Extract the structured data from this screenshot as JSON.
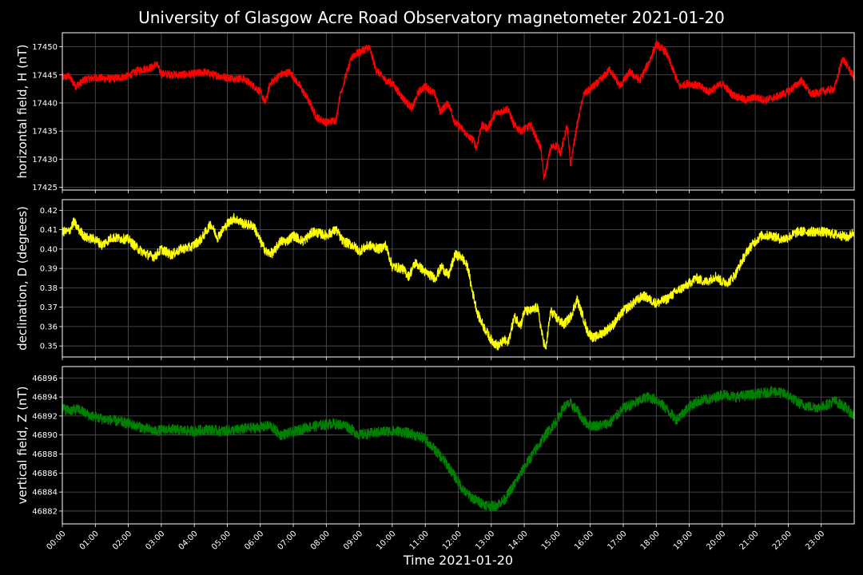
{
  "chart_data": {
    "type": "line",
    "title": "University of Glasgow Acre Road Observatory magnetometer 2021-01-20",
    "xlabel": "Time 2021-01-20",
    "x_tick_labels": [
      "00:00",
      "01:00",
      "02:00",
      "03:00",
      "04:00",
      "05:00",
      "06:00",
      "07:00",
      "08:00",
      "09:00",
      "10:00",
      "11:00",
      "12:00",
      "13:00",
      "14:00",
      "15:00",
      "16:00",
      "17:00",
      "18:00",
      "19:00",
      "20:00",
      "21:00",
      "22:00",
      "23:00"
    ],
    "x_range_hours": [
      0,
      24
    ],
    "grid": true,
    "background": "#000000",
    "grid_color": "#555555",
    "panels": [
      {
        "name": "H",
        "ylabel": "horizontal field, H (nT)",
        "color": "#ff0000",
        "ylim": [
          17424.5,
          17452.5
        ],
        "ytick_values": [
          17425,
          17430,
          17435,
          17440,
          17445,
          17450
        ],
        "ytick_labels": [
          "17425",
          "17430",
          "17435",
          "17440",
          "17445",
          "17450"
        ],
        "noise": 0.7,
        "series": [
          [
            0.0,
            17444.5
          ],
          [
            0.2,
            17444.8
          ],
          [
            0.4,
            17443.0
          ],
          [
            0.7,
            17444.2
          ],
          [
            1.0,
            17444.5
          ],
          [
            1.5,
            17444.3
          ],
          [
            2.0,
            17444.8
          ],
          [
            2.3,
            17445.8
          ],
          [
            2.7,
            17446.3
          ],
          [
            2.85,
            17447.0
          ],
          [
            3.0,
            17445.2
          ],
          [
            3.5,
            17445.0
          ],
          [
            4.0,
            17445.2
          ],
          [
            4.3,
            17445.5
          ],
          [
            4.6,
            17445.0
          ],
          [
            5.0,
            17444.5
          ],
          [
            5.5,
            17444.3
          ],
          [
            5.8,
            17443.0
          ],
          [
            6.0,
            17442.0
          ],
          [
            6.15,
            17440.0
          ],
          [
            6.3,
            17443.5
          ],
          [
            6.6,
            17445.0
          ],
          [
            6.9,
            17445.5
          ],
          [
            7.2,
            17443.0
          ],
          [
            7.5,
            17440.0
          ],
          [
            7.7,
            17437.5
          ],
          [
            8.0,
            17436.5
          ],
          [
            8.3,
            17437.0
          ],
          [
            8.4,
            17441.0
          ],
          [
            8.6,
            17445.0
          ],
          [
            8.8,
            17448.5
          ],
          [
            9.0,
            17449.0
          ],
          [
            9.3,
            17450.0
          ],
          [
            9.5,
            17446.0
          ],
          [
            9.8,
            17444.0
          ],
          [
            10.0,
            17443.5
          ],
          [
            10.3,
            17441.0
          ],
          [
            10.6,
            17439.0
          ],
          [
            10.8,
            17442.0
          ],
          [
            11.0,
            17443.0
          ],
          [
            11.3,
            17441.5
          ],
          [
            11.45,
            17438.5
          ],
          [
            11.7,
            17440.0
          ],
          [
            11.9,
            17436.5
          ],
          [
            12.1,
            17435.5
          ],
          [
            12.3,
            17434.0
          ],
          [
            12.45,
            17433.5
          ],
          [
            12.55,
            17432.0
          ],
          [
            12.7,
            17436.0
          ],
          [
            12.9,
            17435.5
          ],
          [
            13.1,
            17438.0
          ],
          [
            13.3,
            17438.5
          ],
          [
            13.5,
            17439.0
          ],
          [
            13.7,
            17436.0
          ],
          [
            13.9,
            17435.0
          ],
          [
            14.2,
            17436.0
          ],
          [
            14.35,
            17434.0
          ],
          [
            14.5,
            17432.0
          ],
          [
            14.6,
            17426.5
          ],
          [
            14.8,
            17432.0
          ],
          [
            15.0,
            17432.5
          ],
          [
            15.1,
            17431.0
          ],
          [
            15.3,
            17436.0
          ],
          [
            15.4,
            17429.0
          ],
          [
            15.6,
            17436.0
          ],
          [
            15.8,
            17441.5
          ],
          [
            16.0,
            17442.5
          ],
          [
            16.3,
            17444.0
          ],
          [
            16.6,
            17446.0
          ],
          [
            16.9,
            17443.0
          ],
          [
            17.2,
            17445.5
          ],
          [
            17.5,
            17444.0
          ],
          [
            17.8,
            17447.5
          ],
          [
            18.0,
            17450.5
          ],
          [
            18.3,
            17449.0
          ],
          [
            18.5,
            17446.0
          ],
          [
            18.7,
            17443.0
          ],
          [
            19.0,
            17443.5
          ],
          [
            19.3,
            17443.0
          ],
          [
            19.6,
            17442.0
          ],
          [
            20.0,
            17443.5
          ],
          [
            20.3,
            17441.5
          ],
          [
            20.7,
            17440.5
          ],
          [
            21.0,
            17441.0
          ],
          [
            21.3,
            17440.5
          ],
          [
            21.6,
            17441.0
          ],
          [
            22.0,
            17442.0
          ],
          [
            22.4,
            17444.0
          ],
          [
            22.7,
            17441.5
          ],
          [
            23.0,
            17442.0
          ],
          [
            23.4,
            17442.5
          ],
          [
            23.65,
            17448.0
          ],
          [
            23.8,
            17446.5
          ],
          [
            24.0,
            17444.5
          ]
        ]
      },
      {
        "name": "D",
        "ylabel": "declination, D (degrees)",
        "color": "#ffff00",
        "ylim": [
          0.3443,
          0.4255
        ],
        "ytick_values": [
          0.35,
          0.36,
          0.37,
          0.38,
          0.39,
          0.4,
          0.41,
          0.42
        ],
        "ytick_labels": [
          "0.35",
          "0.36",
          "0.37",
          "0.38",
          "0.39",
          "0.40",
          "0.41",
          "0.42"
        ],
        "noise": 0.0025,
        "series": [
          [
            0.0,
            0.409
          ],
          [
            0.2,
            0.409
          ],
          [
            0.35,
            0.414
          ],
          [
            0.5,
            0.41
          ],
          [
            0.7,
            0.406
          ],
          [
            1.0,
            0.405
          ],
          [
            1.2,
            0.402
          ],
          [
            1.5,
            0.406
          ],
          [
            2.0,
            0.405
          ],
          [
            2.3,
            0.4
          ],
          [
            2.6,
            0.397
          ],
          [
            2.8,
            0.396
          ],
          [
            3.0,
            0.4
          ],
          [
            3.3,
            0.397
          ],
          [
            3.6,
            0.4
          ],
          [
            3.9,
            0.401
          ],
          [
            4.2,
            0.405
          ],
          [
            4.5,
            0.413
          ],
          [
            4.7,
            0.406
          ],
          [
            5.0,
            0.413
          ],
          [
            5.2,
            0.416
          ],
          [
            5.5,
            0.413
          ],
          [
            5.8,
            0.412
          ],
          [
            6.0,
            0.404
          ],
          [
            6.2,
            0.398
          ],
          [
            6.4,
            0.398
          ],
          [
            6.6,
            0.404
          ],
          [
            6.8,
            0.404
          ],
          [
            7.0,
            0.407
          ],
          [
            7.3,
            0.404
          ],
          [
            7.6,
            0.409
          ],
          [
            8.0,
            0.407
          ],
          [
            8.3,
            0.41
          ],
          [
            8.5,
            0.404
          ],
          [
            8.8,
            0.402
          ],
          [
            9.0,
            0.399
          ],
          [
            9.3,
            0.402
          ],
          [
            9.6,
            0.4
          ],
          [
            9.8,
            0.402
          ],
          [
            10.0,
            0.391
          ],
          [
            10.3,
            0.39
          ],
          [
            10.5,
            0.386
          ],
          [
            10.7,
            0.393
          ],
          [
            11.0,
            0.388
          ],
          [
            11.3,
            0.385
          ],
          [
            11.5,
            0.391
          ],
          [
            11.7,
            0.386
          ],
          [
            11.9,
            0.397
          ],
          [
            12.1,
            0.396
          ],
          [
            12.3,
            0.39
          ],
          [
            12.4,
            0.38
          ],
          [
            12.5,
            0.373
          ],
          [
            12.6,
            0.366
          ],
          [
            12.8,
            0.359
          ],
          [
            13.0,
            0.353
          ],
          [
            13.2,
            0.35
          ],
          [
            13.4,
            0.353
          ],
          [
            13.5,
            0.351
          ],
          [
            13.7,
            0.365
          ],
          [
            13.9,
            0.361
          ],
          [
            14.0,
            0.368
          ],
          [
            14.2,
            0.368
          ],
          [
            14.4,
            0.37
          ],
          [
            14.55,
            0.355
          ],
          [
            14.65,
            0.348
          ],
          [
            14.8,
            0.368
          ],
          [
            15.0,
            0.364
          ],
          [
            15.2,
            0.361
          ],
          [
            15.4,
            0.365
          ],
          [
            15.6,
            0.374
          ],
          [
            15.8,
            0.364
          ],
          [
            15.9,
            0.358
          ],
          [
            16.1,
            0.354
          ],
          [
            16.4,
            0.357
          ],
          [
            16.7,
            0.361
          ],
          [
            17.0,
            0.368
          ],
          [
            17.3,
            0.372
          ],
          [
            17.6,
            0.376
          ],
          [
            18.0,
            0.372
          ],
          [
            18.3,
            0.374
          ],
          [
            18.6,
            0.378
          ],
          [
            18.9,
            0.381
          ],
          [
            19.2,
            0.385
          ],
          [
            19.5,
            0.383
          ],
          [
            19.8,
            0.386
          ],
          [
            20.0,
            0.383
          ],
          [
            20.2,
            0.383
          ],
          [
            20.4,
            0.387
          ],
          [
            20.6,
            0.394
          ],
          [
            20.8,
            0.4
          ],
          [
            21.0,
            0.404
          ],
          [
            21.2,
            0.407
          ],
          [
            21.5,
            0.407
          ],
          [
            21.8,
            0.405
          ],
          [
            22.0,
            0.406
          ],
          [
            22.3,
            0.409
          ],
          [
            22.6,
            0.409
          ],
          [
            23.0,
            0.409
          ],
          [
            23.3,
            0.408
          ],
          [
            23.6,
            0.407
          ],
          [
            23.8,
            0.406
          ],
          [
            24.0,
            0.409
          ]
        ]
      },
      {
        "name": "Z",
        "ylabel": "vertical field, Z (nT)",
        "color": "#008000",
        "ylim": [
          46880.65,
          46897.2
        ],
        "ytick_values": [
          46882,
          46884,
          46886,
          46888,
          46890,
          46892,
          46894,
          46896
        ],
        "ytick_labels": [
          "46882",
          "46884",
          "46886",
          "46888",
          "46890",
          "46892",
          "46894",
          "46896"
        ],
        "noise": 0.55,
        "series": [
          [
            0.0,
            46892.8
          ],
          [
            0.2,
            46892.6
          ],
          [
            0.5,
            46892.7
          ],
          [
            0.8,
            46892.1
          ],
          [
            1.2,
            46891.7
          ],
          [
            1.6,
            46891.5
          ],
          [
            2.0,
            46891.2
          ],
          [
            2.4,
            46890.8
          ],
          [
            2.8,
            46890.4
          ],
          [
            3.2,
            46890.6
          ],
          [
            3.6,
            46890.5
          ],
          [
            4.0,
            46890.4
          ],
          [
            4.4,
            46890.6
          ],
          [
            4.8,
            46890.4
          ],
          [
            5.2,
            46890.5
          ],
          [
            5.6,
            46890.7
          ],
          [
            6.0,
            46890.8
          ],
          [
            6.3,
            46891.0
          ],
          [
            6.6,
            46890.0
          ],
          [
            7.0,
            46890.3
          ],
          [
            7.4,
            46890.8
          ],
          [
            7.8,
            46891.0
          ],
          [
            8.2,
            46891.2
          ],
          [
            8.6,
            46891.0
          ],
          [
            9.0,
            46890.0
          ],
          [
            9.4,
            46890.2
          ],
          [
            9.8,
            46890.4
          ],
          [
            10.2,
            46890.4
          ],
          [
            10.6,
            46890.1
          ],
          [
            11.0,
            46889.6
          ],
          [
            11.3,
            46888.4
          ],
          [
            11.6,
            46887.2
          ],
          [
            11.9,
            46885.6
          ],
          [
            12.2,
            46884.0
          ],
          [
            12.5,
            46883.2
          ],
          [
            12.8,
            46882.7
          ],
          [
            13.1,
            46882.5
          ],
          [
            13.4,
            46883.2
          ],
          [
            13.7,
            46884.8
          ],
          [
            14.0,
            46886.6
          ],
          [
            14.3,
            46888.2
          ],
          [
            14.6,
            46889.8
          ],
          [
            15.0,
            46891.6
          ],
          [
            15.2,
            46893.0
          ],
          [
            15.4,
            46893.3
          ],
          [
            15.6,
            46892.6
          ],
          [
            15.8,
            46891.5
          ],
          [
            16.0,
            46891.0
          ],
          [
            16.3,
            46891.0
          ],
          [
            16.6,
            46891.3
          ],
          [
            17.0,
            46892.8
          ],
          [
            17.4,
            46893.4
          ],
          [
            17.7,
            46894.0
          ],
          [
            18.0,
            46893.7
          ],
          [
            18.3,
            46892.8
          ],
          [
            18.6,
            46891.6
          ],
          [
            19.0,
            46893.0
          ],
          [
            19.3,
            46893.6
          ],
          [
            19.7,
            46893.8
          ],
          [
            20.0,
            46894.3
          ],
          [
            20.4,
            46894.0
          ],
          [
            20.8,
            46894.2
          ],
          [
            21.2,
            46894.4
          ],
          [
            21.6,
            46894.6
          ],
          [
            22.0,
            46894.2
          ],
          [
            22.3,
            46893.4
          ],
          [
            22.6,
            46893.0
          ],
          [
            23.0,
            46892.9
          ],
          [
            23.4,
            46893.6
          ],
          [
            23.7,
            46893.0
          ],
          [
            24.0,
            46892.0
          ]
        ]
      }
    ]
  }
}
